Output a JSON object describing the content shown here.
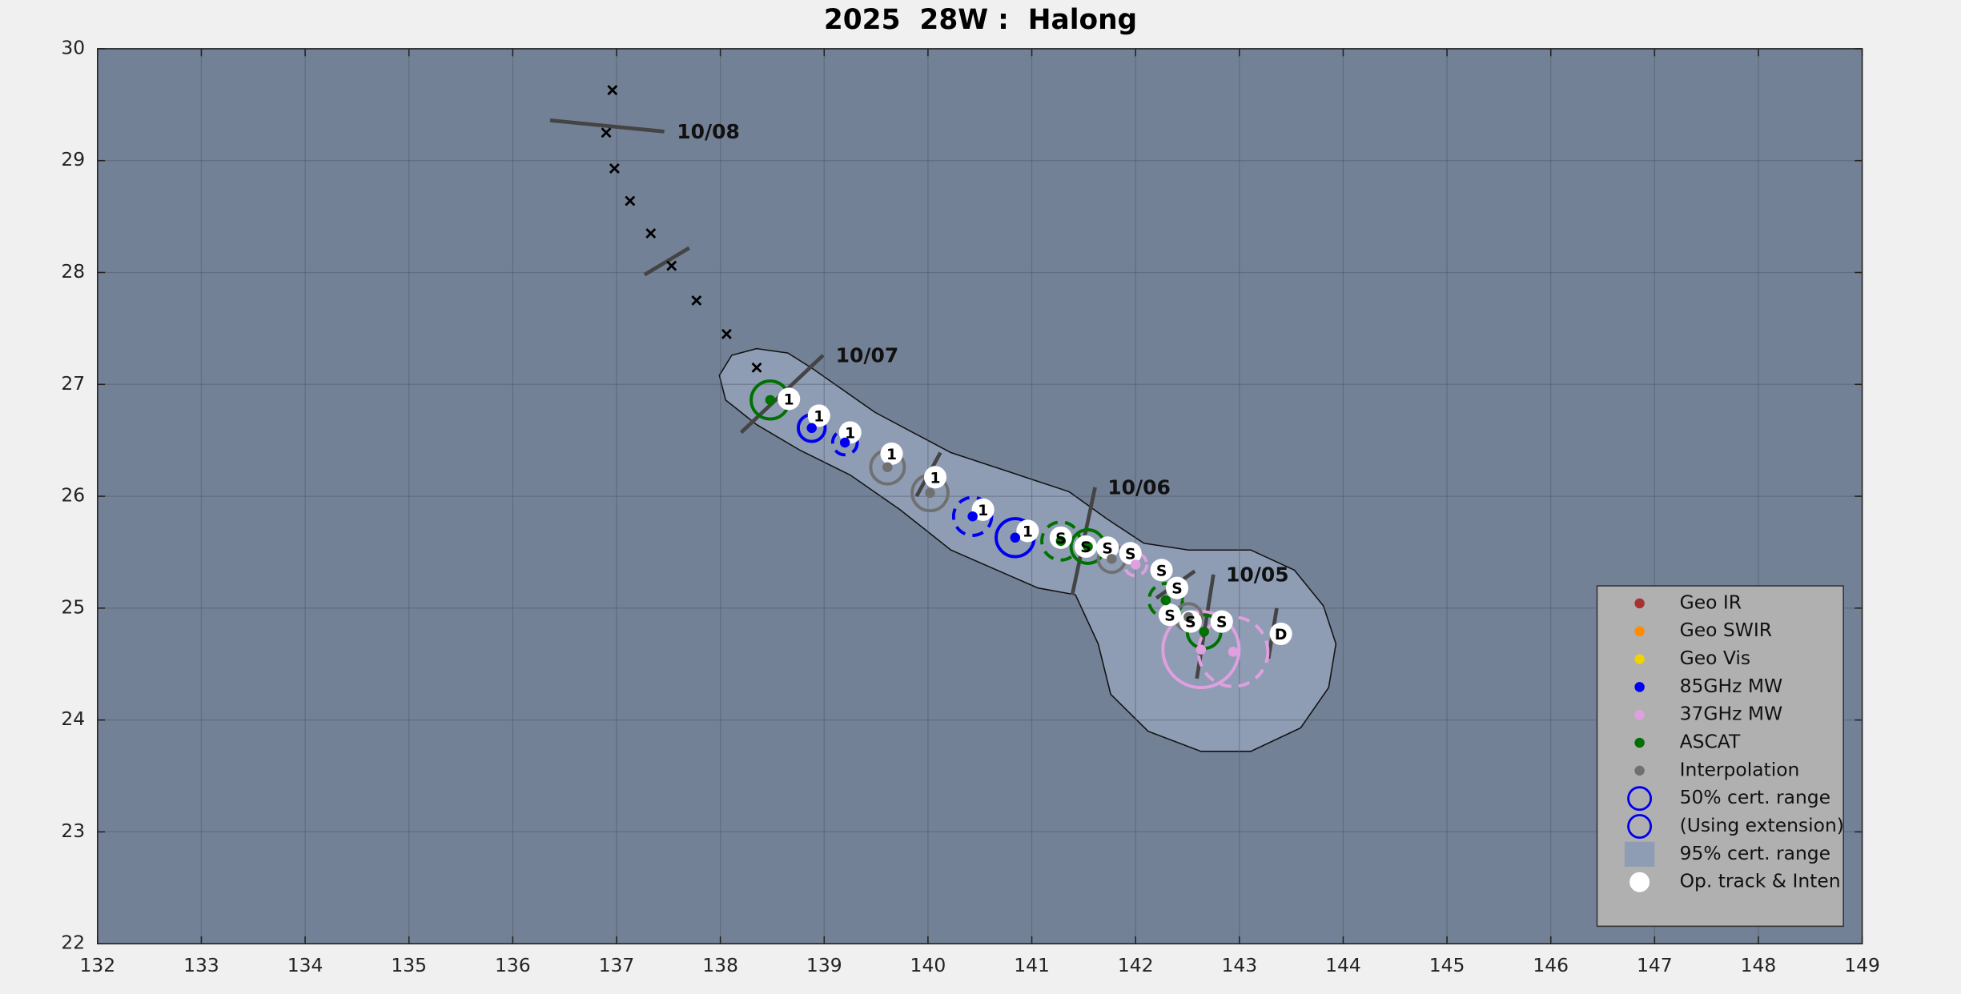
{
  "chart_data": {
    "type": "track",
    "title": "2025  28W :  Halong",
    "xlim": [
      132,
      149
    ],
    "ylim": [
      22,
      30
    ],
    "xticks": [
      132,
      133,
      134,
      135,
      136,
      137,
      138,
      139,
      140,
      141,
      142,
      143,
      144,
      145,
      146,
      147,
      148,
      149
    ],
    "yticks": [
      22,
      23,
      24,
      25,
      26,
      27,
      28,
      29,
      30
    ],
    "grid": true,
    "legend_position": "lower right",
    "background_color": "#738196",
    "cone": {
      "name": "95% cert. range",
      "color": "#8f9db4",
      "points": [
        [
          138.35,
          27.32
        ],
        [
          138.65,
          27.28
        ],
        [
          138.89,
          27.14
        ],
        [
          139.49,
          26.75
        ],
        [
          140.22,
          26.39
        ],
        [
          140.94,
          26.17
        ],
        [
          141.36,
          26.04
        ],
        [
          141.72,
          25.8
        ],
        [
          142.08,
          25.58
        ],
        [
          142.51,
          25.52
        ],
        [
          143.11,
          25.52
        ],
        [
          143.53,
          25.34
        ],
        [
          143.81,
          25.02
        ],
        [
          143.93,
          24.68
        ],
        [
          143.86,
          24.29
        ],
        [
          143.59,
          23.93
        ],
        [
          143.11,
          23.72
        ],
        [
          142.63,
          23.72
        ],
        [
          142.12,
          23.9
        ],
        [
          141.76,
          24.23
        ],
        [
          141.64,
          24.68
        ],
        [
          141.42,
          25.12
        ],
        [
          141.06,
          25.18
        ],
        [
          140.64,
          25.35
        ],
        [
          140.22,
          25.52
        ],
        [
          139.73,
          25.88
        ],
        [
          139.25,
          26.19
        ],
        [
          138.77,
          26.41
        ],
        [
          138.35,
          26.64
        ],
        [
          138.05,
          26.86
        ],
        [
          137.99,
          27.08
        ],
        [
          138.11,
          27.26
        ]
      ]
    },
    "forecast": {
      "color": "#000000",
      "points": [
        [
          136.96,
          29.63
        ],
        [
          136.9,
          29.25
        ],
        [
          136.98,
          28.93
        ],
        [
          137.13,
          28.64
        ],
        [
          137.33,
          28.35
        ],
        [
          137.53,
          28.06
        ],
        [
          137.77,
          27.75
        ],
        [
          138.06,
          27.45
        ],
        [
          138.35,
          27.15
        ]
      ]
    },
    "day_marks": [
      {
        "label": "10/08",
        "line": [
          [
            136.36,
            29.36
          ],
          [
            137.46,
            29.26
          ]
        ]
      },
      {
        "line": [
          [
            137.27,
            27.98
          ],
          [
            137.7,
            28.22
          ]
        ]
      },
      {
        "label": "10/07",
        "line": [
          [
            138.2,
            26.57
          ],
          [
            138.99,
            27.26
          ]
        ]
      },
      {
        "line": [
          [
            139.89,
            26.0
          ],
          [
            140.12,
            26.39
          ]
        ]
      },
      {
        "label": "10/06",
        "line": [
          [
            141.39,
            25.12
          ],
          [
            141.61,
            26.08
          ]
        ]
      },
      {
        "line": [
          [
            142.2,
            25.09
          ],
          [
            142.57,
            25.33
          ]
        ]
      },
      {
        "label": "10/05",
        "line": [
          [
            142.59,
            24.37
          ],
          [
            142.75,
            25.3
          ]
        ]
      },
      {
        "line": [
          [
            143.28,
            24.55
          ],
          [
            143.36,
            25.0
          ]
        ]
      }
    ],
    "series": [
      {
        "name": "Geo IR",
        "color": "#a83232",
        "points": []
      },
      {
        "name": "Geo SWIR",
        "color": "#ff8c00",
        "points": []
      },
      {
        "name": "Geo Vis",
        "color": "#f2d200",
        "points": []
      },
      {
        "name": "85GHz MW",
        "color": "#0000ee",
        "points": [
          {
            "lon": 138.88,
            "lat": 26.61,
            "r": 0.12,
            "ext": false
          },
          {
            "lon": 139.2,
            "lat": 26.48,
            "r": 0.11,
            "ext": true
          },
          {
            "lon": 140.43,
            "lat": 25.82,
            "r": 0.17,
            "ext": true
          },
          {
            "lon": 140.84,
            "lat": 25.63,
            "r": 0.17,
            "ext": false
          }
        ]
      },
      {
        "name": "37GHz MW",
        "color": "#e0a0e0",
        "points": [
          {
            "lon": 142.0,
            "lat": 25.39,
            "r": 0.1,
            "ext": true
          },
          {
            "lon": 142.63,
            "lat": 24.63,
            "r": 0.34,
            "ext": false
          },
          {
            "lon": 142.94,
            "lat": 24.61,
            "r": 0.31,
            "ext": true
          }
        ]
      },
      {
        "name": "ASCAT",
        "color": "#007000",
        "points": [
          {
            "lon": 138.48,
            "lat": 26.86,
            "r": 0.17,
            "ext": false
          },
          {
            "lon": 141.28,
            "lat": 25.6,
            "r": 0.17,
            "ext": true
          },
          {
            "lon": 141.54,
            "lat": 25.55,
            "r": 0.15,
            "ext": false
          },
          {
            "lon": 142.29,
            "lat": 25.07,
            "r": 0.15,
            "ext": true
          },
          {
            "lon": 142.66,
            "lat": 24.79,
            "r": 0.15,
            "ext": false
          }
        ]
      },
      {
        "name": "Interpolation",
        "color": "#707070",
        "points": [
          {
            "lon": 139.61,
            "lat": 26.26,
            "r": 0.15,
            "ext": false
          },
          {
            "lon": 140.02,
            "lat": 26.03,
            "r": 0.16,
            "ext": false
          },
          {
            "lon": 141.77,
            "lat": 25.44,
            "r": 0.12,
            "ext": false
          },
          {
            "lon": 142.51,
            "lat": 24.92,
            "r": 0.12,
            "ext": false
          }
        ]
      }
    ],
    "circle_legend": [
      {
        "name": "50% cert. range",
        "color": "#0000ee",
        "ext": false
      },
      {
        "name": "(Using extension)",
        "color": "#0000ee",
        "ext": true
      }
    ],
    "op_track": {
      "name": "Op. track & Inten",
      "color": "#ffffff",
      "points": [
        [
          138.66,
          26.87
        ],
        [
          138.95,
          26.72
        ],
        [
          139.25,
          26.57
        ],
        [
          139.65,
          26.38
        ],
        [
          140.07,
          26.17
        ],
        [
          140.53,
          25.88
        ],
        [
          140.96,
          25.69
        ],
        [
          141.28,
          25.63
        ],
        [
          141.52,
          25.55
        ],
        [
          141.73,
          25.54
        ],
        [
          141.95,
          25.49
        ],
        [
          142.25,
          25.34
        ],
        [
          142.4,
          25.18
        ],
        [
          142.33,
          24.94
        ],
        [
          142.53,
          24.88
        ],
        [
          142.83,
          24.88
        ],
        [
          143.4,
          24.77
        ]
      ],
      "labels": [
        "1",
        "1",
        "1",
        "1",
        "1",
        "1",
        "1",
        "S",
        "S",
        "S",
        "S",
        "S",
        "S",
        "S",
        "S",
        "S",
        "D"
      ]
    }
  }
}
